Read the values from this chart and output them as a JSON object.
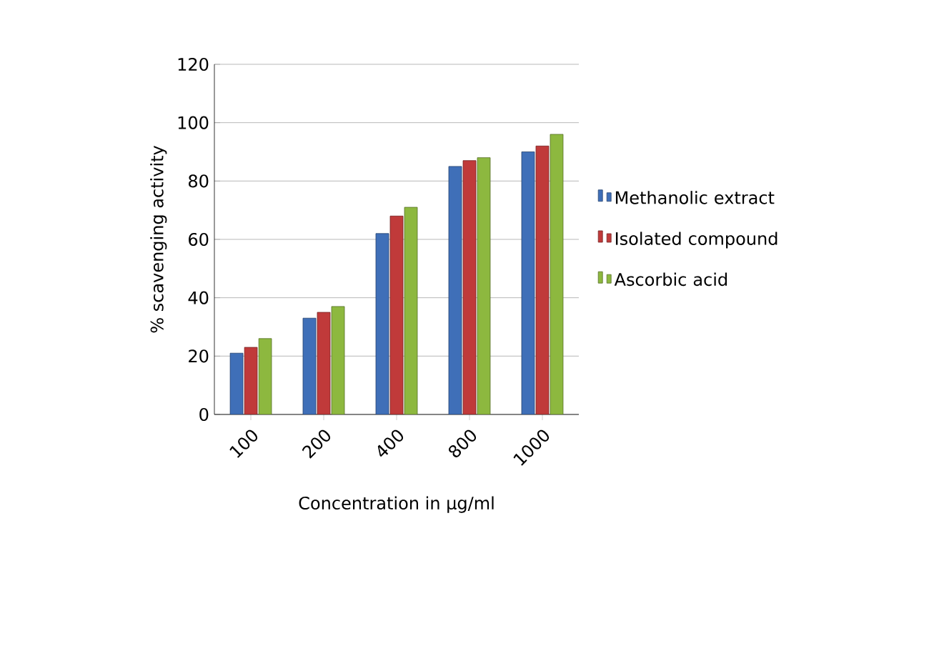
{
  "chart_data": {
    "type": "bar",
    "xlabel": "Concentration in µg/ml",
    "ylabel": "% scavenging  activity",
    "categories": [
      "100",
      "200",
      "400",
      "800",
      "1000"
    ],
    "series": [
      {
        "name": "Methanolic extract",
        "color": "#3f6fb8",
        "values": [
          21,
          33,
          62,
          85,
          90
        ]
      },
      {
        "name": "Isolated compound",
        "color": "#c03a3a",
        "values": [
          23,
          35,
          68,
          87,
          92
        ]
      },
      {
        "name": "Ascorbic acid",
        "color": "#8db83f",
        "values": [
          26,
          37,
          71,
          88,
          96
        ]
      }
    ],
    "ylim": [
      0,
      120
    ],
    "yticks": [
      0,
      20,
      40,
      60,
      80,
      100,
      120
    ],
    "grid": "y",
    "legend": "right"
  }
}
